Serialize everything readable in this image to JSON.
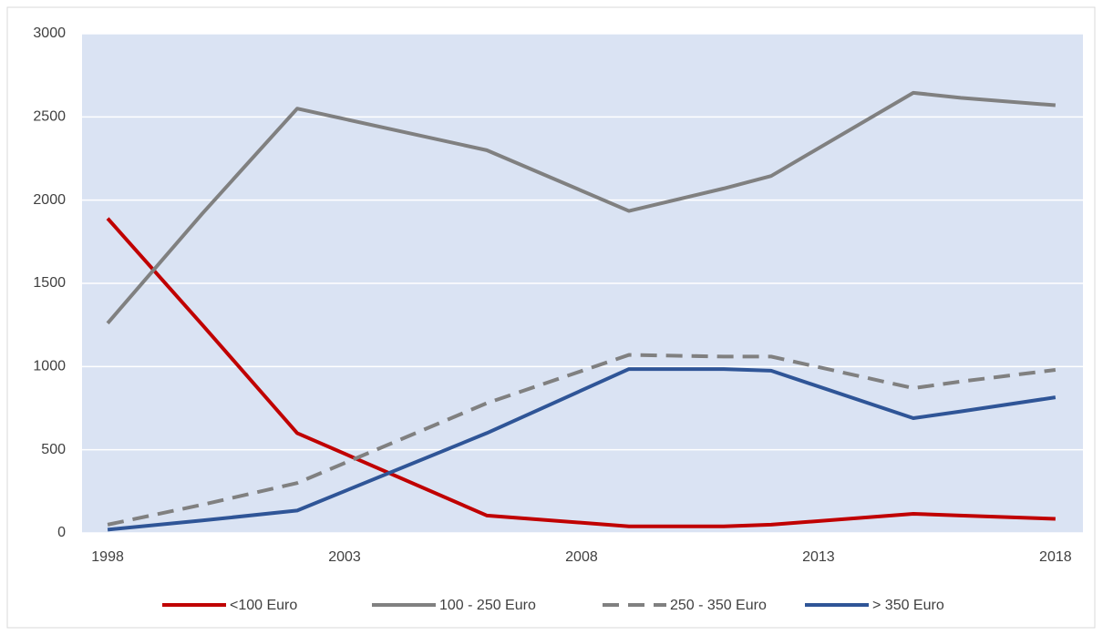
{
  "chart_data": {
    "type": "line",
    "x": [
      1998,
      2000,
      2002,
      2006,
      2009,
      2011,
      2012,
      2015,
      2016,
      2018
    ],
    "series": [
      {
        "name": "<100 Euro",
        "color": "#c00000",
        "style": "solid",
        "values": [
          1890,
          1250,
          600,
          105,
          40,
          40,
          50,
          115,
          105,
          85
        ]
      },
      {
        "name": "100 - 250 Euro",
        "color": "#808080",
        "style": "solid",
        "values": [
          1260,
          1920,
          2550,
          2300,
          1935,
          2070,
          2145,
          2645,
          2615,
          2570
        ]
      },
      {
        "name": "250 - 350 Euro",
        "color": "#808080",
        "style": "dashed",
        "values": [
          50,
          170,
          300,
          780,
          1070,
          1060,
          1060,
          870,
          910,
          980
        ]
      },
      {
        "name": "> 350 Euro",
        "color": "#2f5597",
        "style": "solid",
        "values": [
          20,
          75,
          135,
          600,
          985,
          985,
          975,
          690,
          730,
          815
        ]
      }
    ],
    "xlim": [
      1997.46,
      2018.58
    ],
    "xticks": [
      1998,
      2003,
      2008,
      2013,
      2018
    ],
    "ylim": [
      0,
      3000
    ],
    "yticks": [
      0,
      500,
      1000,
      1500,
      2000,
      2500,
      3000
    ],
    "grid": true,
    "plot_background": "#dae3f3",
    "legend": "bottom"
  }
}
